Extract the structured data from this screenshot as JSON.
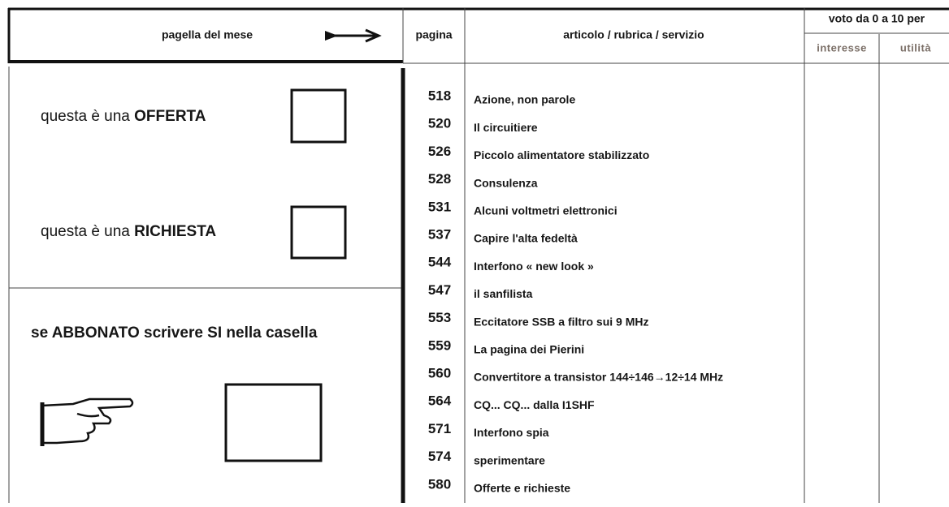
{
  "header": {
    "title": "pagella del mese",
    "page_column": "pagina",
    "article_column": "articolo / rubrica / servizio",
    "vote_column": "voto da 0 a 10 per",
    "interest_column": "interesse",
    "utility_column": "utilità"
  },
  "offer": {
    "prefix": "questa è una",
    "keyword": "OFFERTA"
  },
  "request": {
    "prefix": "questa è una",
    "keyword": "RICHIESTA"
  },
  "subscriber": {
    "text": "se ABBONATO scrivere SI nella casella"
  },
  "table": {
    "rows": [
      [
        "518",
        "Azione, non parole"
      ],
      [
        "520",
        "Il circuitiere"
      ],
      [
        "526",
        "Piccolo alimentatore stabilizzato"
      ],
      [
        "528",
        "Consulenza"
      ],
      [
        "531",
        "Alcuni voltmetri elettronici"
      ],
      [
        "537",
        "Capire l'alta fedeltà"
      ],
      [
        "544",
        "Interfono « new look »"
      ],
      [
        "547",
        "il sanfilista"
      ],
      [
        "553",
        "Eccitatore SSB a filtro sui 9 MHz"
      ],
      [
        "559",
        "La pagina dei Pierini"
      ],
      [
        "560",
        "Convertitore a transistor 144÷146→12÷14 MHz"
      ],
      [
        "564",
        "CQ... CQ... dalla I1SHF"
      ],
      [
        "571",
        "Interfono spia"
      ],
      [
        "574",
        "sperimentare"
      ],
      [
        "580",
        "Offerte e richieste"
      ]
    ]
  }
}
